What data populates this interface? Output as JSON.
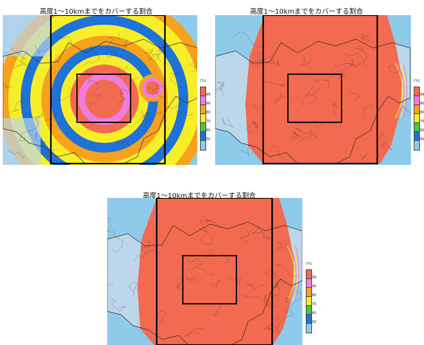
{
  "panels": [
    {
      "title": "高度1〜10kmまでをカバーする割合",
      "variant": "rings"
    },
    {
      "title": "高度1〜10kmまでをカバーする割合",
      "variant": "full"
    },
    {
      "title": "高度1〜10kmまでをカバーする割合",
      "variant": "full"
    }
  ],
  "colorbar": {
    "unit": "(%)",
    "levels": [
      {
        "label": "99",
        "color": "#f26a50"
      },
      {
        "label": "90",
        "color": "#ef7ddd"
      },
      {
        "label": "80",
        "color": "#f7a21d"
      },
      {
        "label": "70",
        "color": "#f7ee2a"
      },
      {
        "label": "60",
        "color": "#43c83f"
      },
      {
        "label": "50",
        "color": "#1f72d8"
      },
      {
        "label": "",
        "color": "#8ecbea"
      }
    ]
  },
  "colors": {
    "sea": "#8ecbea",
    "land": "#bcd6ea",
    "coverage": "#f26a50",
    "boundary": "#2a2a2a",
    "domain_box": "#000000"
  }
}
